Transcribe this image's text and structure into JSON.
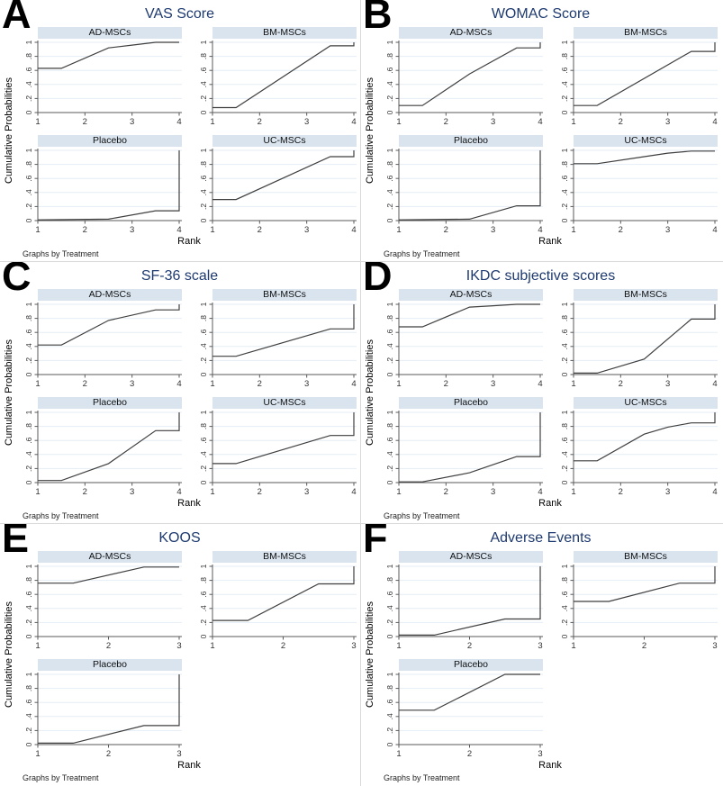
{
  "chart_data": {
    "type": "line",
    "description": "Six lettered panels of cumulative rank probability plots, each a trellis of small line charts by treatment",
    "ylabel": "Cumulative Probabilities",
    "xlabel": "Rank",
    "note": "Graphs by Treatment",
    "ylim": [
      0,
      1
    ],
    "y_ticks": [
      0,
      0.2,
      0.4,
      0.6,
      0.8,
      1
    ],
    "y_tick_labels": [
      "0",
      ".2",
      ".4",
      ".6",
      ".8",
      "1"
    ],
    "grid": true,
    "legend_position": "none",
    "colors": {
      "title": "#1e3a70",
      "band_bg": "#d9e4ef",
      "gridline": "#e4edf5",
      "axis": "#5a5a5a",
      "curve": "#3f3f3f",
      "panel_divider": "#d9d9d9",
      "tick_text": "#333333"
    },
    "panels": [
      {
        "letter": "A",
        "title": "VAS Score",
        "xlim": [
          1,
          4
        ],
        "x_ticks": [
          1,
          2,
          3,
          4
        ],
        "subplots": [
          {
            "treatment": "AD-MSCs",
            "points": [
              [
                1,
                0.63
              ],
              [
                1.5,
                0.63
              ],
              [
                2.5,
                0.92
              ],
              [
                3,
                0.96
              ],
              [
                3.5,
                1
              ],
              [
                4,
                1
              ]
            ]
          },
          {
            "treatment": "BM-MSCs",
            "points": [
              [
                1,
                0.07
              ],
              [
                1.5,
                0.07
              ],
              [
                3.5,
                0.95
              ],
              [
                4,
                0.95
              ],
              [
                4,
                1
              ]
            ]
          },
          {
            "treatment": "Placebo",
            "points": [
              [
                1,
                0.01
              ],
              [
                2.5,
                0.02
              ],
              [
                3.5,
                0.14
              ],
              [
                4,
                0.14
              ],
              [
                4,
                1
              ]
            ]
          },
          {
            "treatment": "UC-MSCs",
            "points": [
              [
                1,
                0.3
              ],
              [
                1.5,
                0.3
              ],
              [
                3.5,
                0.91
              ],
              [
                4,
                0.91
              ],
              [
                4,
                1
              ]
            ]
          }
        ]
      },
      {
        "letter": "B",
        "title": "WOMAC Score",
        "xlim": [
          1,
          4
        ],
        "x_ticks": [
          1,
          2,
          3,
          4
        ],
        "subplots": [
          {
            "treatment": "AD-MSCs",
            "points": [
              [
                1,
                0.1
              ],
              [
                1.5,
                0.1
              ],
              [
                2.5,
                0.55
              ],
              [
                3.5,
                0.92
              ],
              [
                4,
                0.92
              ],
              [
                4,
                1
              ]
            ]
          },
          {
            "treatment": "BM-MSCs",
            "points": [
              [
                1,
                0.1
              ],
              [
                1.5,
                0.1
              ],
              [
                3.5,
                0.87
              ],
              [
                4,
                0.87
              ],
              [
                4,
                1
              ]
            ]
          },
          {
            "treatment": "Placebo",
            "points": [
              [
                1,
                0.01
              ],
              [
                2.5,
                0.02
              ],
              [
                3.5,
                0.21
              ],
              [
                4,
                0.21
              ],
              [
                4,
                1
              ]
            ]
          },
          {
            "treatment": "UC-MSCs",
            "points": [
              [
                1,
                0.81
              ],
              [
                1.5,
                0.81
              ],
              [
                2.5,
                0.91
              ],
              [
                3,
                0.96
              ],
              [
                3.5,
                0.99
              ],
              [
                4,
                0.99
              ]
            ]
          }
        ]
      },
      {
        "letter": "C",
        "title": "SF-36 scale",
        "xlim": [
          1,
          4
        ],
        "x_ticks": [
          1,
          2,
          3,
          4
        ],
        "subplots": [
          {
            "treatment": "AD-MSCs",
            "points": [
              [
                1,
                0.42
              ],
              [
                1.5,
                0.42
              ],
              [
                2.5,
                0.77
              ],
              [
                3.5,
                0.92
              ],
              [
                4,
                0.92
              ],
              [
                4,
                1
              ]
            ]
          },
          {
            "treatment": "BM-MSCs",
            "points": [
              [
                1,
                0.26
              ],
              [
                1.5,
                0.26
              ],
              [
                3.5,
                0.65
              ],
              [
                4,
                0.65
              ],
              [
                4,
                1
              ]
            ]
          },
          {
            "treatment": "Placebo",
            "points": [
              [
                1,
                0.03
              ],
              [
                1.5,
                0.03
              ],
              [
                2.5,
                0.27
              ],
              [
                3.5,
                0.74
              ],
              [
                4,
                0.74
              ],
              [
                4,
                1
              ]
            ]
          },
          {
            "treatment": "UC-MSCs",
            "points": [
              [
                1,
                0.27
              ],
              [
                1.5,
                0.27
              ],
              [
                3.5,
                0.67
              ],
              [
                4,
                0.67
              ],
              [
                4,
                1
              ]
            ]
          }
        ]
      },
      {
        "letter": "D",
        "title": "IKDC subjective scores",
        "xlim": [
          1,
          4
        ],
        "x_ticks": [
          1,
          2,
          3,
          4
        ],
        "subplots": [
          {
            "treatment": "AD-MSCs",
            "points": [
              [
                1,
                0.68
              ],
              [
                1.5,
                0.68
              ],
              [
                2.5,
                0.96
              ],
              [
                3,
                0.98
              ],
              [
                3.5,
                1
              ],
              [
                4,
                1
              ]
            ]
          },
          {
            "treatment": "BM-MSCs",
            "points": [
              [
                1,
                0.02
              ],
              [
                1.5,
                0.02
              ],
              [
                2.5,
                0.22
              ],
              [
                3.5,
                0.79
              ],
              [
                4,
                0.79
              ],
              [
                4,
                1
              ]
            ]
          },
          {
            "treatment": "Placebo",
            "points": [
              [
                1,
                0.01
              ],
              [
                1.5,
                0.01
              ],
              [
                2.5,
                0.14
              ],
              [
                3.5,
                0.37
              ],
              [
                4,
                0.37
              ],
              [
                4,
                1
              ]
            ]
          },
          {
            "treatment": "UC-MSCs",
            "points": [
              [
                1,
                0.31
              ],
              [
                1.5,
                0.31
              ],
              [
                2.5,
                0.69
              ],
              [
                3,
                0.79
              ],
              [
                3.5,
                0.85
              ],
              [
                4,
                0.85
              ],
              [
                4,
                1
              ]
            ]
          }
        ]
      },
      {
        "letter": "E",
        "title": "KOOS",
        "xlim": [
          1,
          3
        ],
        "x_ticks": [
          1,
          2,
          3
        ],
        "subplots": [
          {
            "treatment": "AD-MSCs",
            "points": [
              [
                1,
                0.76
              ],
              [
                1.5,
                0.76
              ],
              [
                2.5,
                0.99
              ],
              [
                3,
                0.99
              ]
            ]
          },
          {
            "treatment": "BM-MSCs",
            "points": [
              [
                1,
                0.23
              ],
              [
                1.5,
                0.23
              ],
              [
                2.5,
                0.75
              ],
              [
                3,
                0.75
              ],
              [
                3,
                1
              ]
            ]
          },
          {
            "treatment": "Placebo",
            "points": [
              [
                1,
                0.02
              ],
              [
                1.5,
                0.02
              ],
              [
                2.5,
                0.27
              ],
              [
                3,
                0.27
              ],
              [
                3,
                1
              ]
            ]
          }
        ]
      },
      {
        "letter": "F",
        "title": "Adverse Events",
        "xlim": [
          1,
          3
        ],
        "x_ticks": [
          1,
          2,
          3
        ],
        "subplots": [
          {
            "treatment": "AD-MSCs",
            "points": [
              [
                1,
                0.02
              ],
              [
                1.5,
                0.02
              ],
              [
                2.5,
                0.25
              ],
              [
                3,
                0.25
              ],
              [
                3,
                1
              ]
            ]
          },
          {
            "treatment": "BM-MSCs",
            "points": [
              [
                1,
                0.5
              ],
              [
                1.5,
                0.5
              ],
              [
                2.5,
                0.76
              ],
              [
                3,
                0.76
              ],
              [
                3,
                1
              ]
            ]
          },
          {
            "treatment": "Placebo",
            "points": [
              [
                1,
                0.49
              ],
              [
                1.5,
                0.49
              ],
              [
                2.5,
                1
              ],
              [
                3,
                1
              ]
            ]
          }
        ]
      }
    ]
  }
}
